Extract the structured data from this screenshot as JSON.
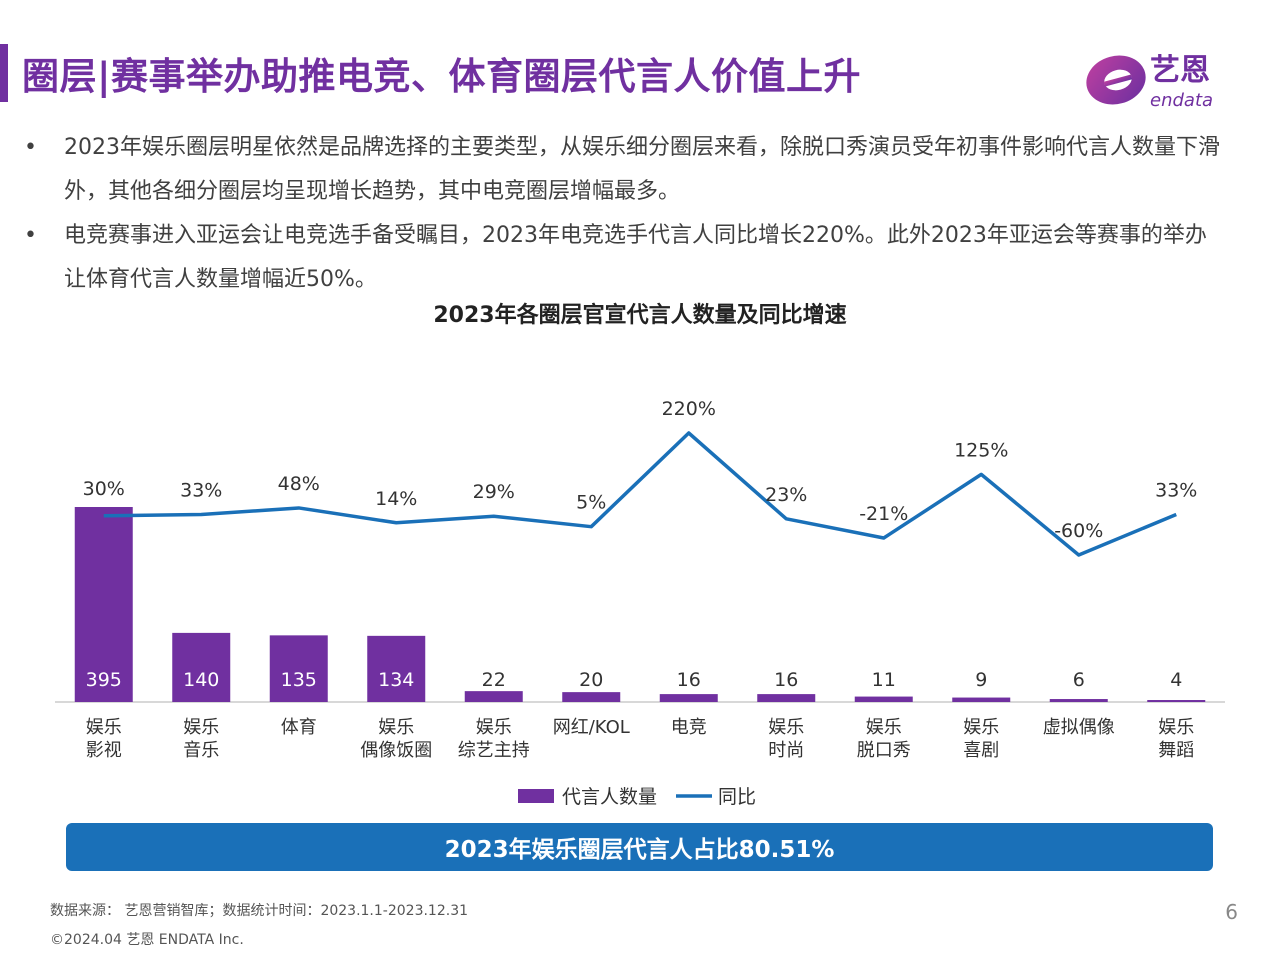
{
  "header": {
    "title": "圈层|赛事举办助推电竞、体育圈层代言人价值上升",
    "logo_text": "艺恩",
    "logo_subtext": "endata",
    "accent_color": "#7030a0"
  },
  "bullets": [
    {
      "marker": "•",
      "text": "2023年娱乐圈层明星依然是品牌选择的主要类型，从娱乐细分圈层来看，除脱口秀演员受年初事件影响代言人数量下滑外，其他各细分圈层均呈现增长趋势，其中电竞圈层增幅最多。"
    },
    {
      "marker": "•",
      "text": "电竞赛事进入亚运会让电竞选手备受瞩目，2023年电竞选手代言人同比增长220%。此外2023年亚运会等赛事的举办让体育代言人数量增幅近50%。"
    }
  ],
  "chart_data": {
    "type": "bar",
    "title": "2023年各圈层官宣代言人数量及同比增速",
    "categories": [
      [
        "娱乐",
        "影视"
      ],
      [
        "娱乐",
        "音乐"
      ],
      [
        "体育"
      ],
      [
        "娱乐",
        "偶像饭圈"
      ],
      [
        "娱乐",
        "综艺主持"
      ],
      [
        "网红/KOL"
      ],
      [
        "电竞"
      ],
      [
        "娱乐",
        "时尚"
      ],
      [
        "娱乐",
        "脱口秀"
      ],
      [
        "娱乐",
        "喜剧"
      ],
      [
        "虚拟偶像"
      ],
      [
        "娱乐",
        "舞蹈"
      ]
    ],
    "series": [
      {
        "name": "代言人数量",
        "type": "bar",
        "color": "#7030a0",
        "values": [
          395,
          140,
          135,
          134,
          22,
          20,
          16,
          16,
          11,
          9,
          6,
          4
        ],
        "labels": [
          "395",
          "140",
          "135",
          "134",
          "22",
          "20",
          "16",
          "16",
          "11",
          "9",
          "6",
          "4"
        ]
      },
      {
        "name": "同比",
        "type": "line",
        "color": "#1a70b8",
        "values": [
          30,
          33,
          48,
          14,
          29,
          5,
          220,
          23,
          -21,
          125,
          -60,
          33
        ],
        "labels": [
          "30%",
          "33%",
          "48%",
          "14%",
          "29%",
          "5%",
          "220%",
          "23%",
          "-21%",
          "125%",
          "-60%",
          "33%"
        ]
      }
    ],
    "legend_position": "bottom",
    "grid": false
  },
  "banner": {
    "text": "2023年娱乐圈层代言人占比80.51%"
  },
  "footer": {
    "source": "数据来源： 艺恩营销智库；数据统计时间：2023.1.1-2023.12.31",
    "copyright": "©2024.04 艺恩 ENDATA Inc.",
    "page_number": "6"
  }
}
